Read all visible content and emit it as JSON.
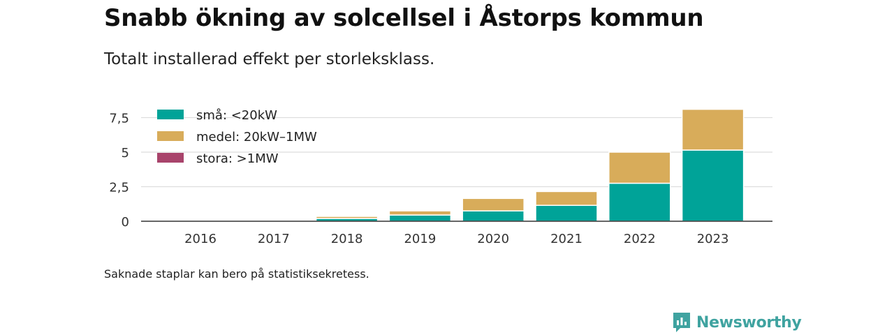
{
  "title": "Snabb ökning av solcellsel i Åstorps kommun",
  "subtitle": "Totalt installerad effekt per storleksklass.",
  "footnote": "Saknade staplar kan bero på statistiksekretess.",
  "brand": {
    "name": "Newsworthy",
    "icon": "newsworthy-logo-icon",
    "color": "#3fa3a0"
  },
  "chart_data": {
    "type": "bar",
    "stacked": true,
    "categories": [
      "2016",
      "2017",
      "2018",
      "2019",
      "2020",
      "2021",
      "2022",
      "2023"
    ],
    "series": [
      {
        "name": "små: <20kW",
        "color": "#00a398",
        "values": [
          0,
          0,
          0.2,
          0.45,
          0.75,
          1.15,
          2.75,
          5.15
        ]
      },
      {
        "name": "medel: 20kW–1MW",
        "color": "#d8ac5a",
        "values": [
          0,
          0,
          0.15,
          0.3,
          0.9,
          1.0,
          2.25,
          2.95
        ]
      },
      {
        "name": "stora: >1MW",
        "color": "#a8446b",
        "values": [
          0,
          0,
          0,
          0,
          0,
          0,
          0,
          0
        ]
      }
    ],
    "yticks": [
      0,
      2.5,
      5,
      7.5
    ],
    "ytick_labels": [
      "0",
      "2,5",
      "5",
      "7,5"
    ],
    "ylim": [
      0,
      8.5
    ],
    "grid": true,
    "legend_position": "top-left"
  }
}
